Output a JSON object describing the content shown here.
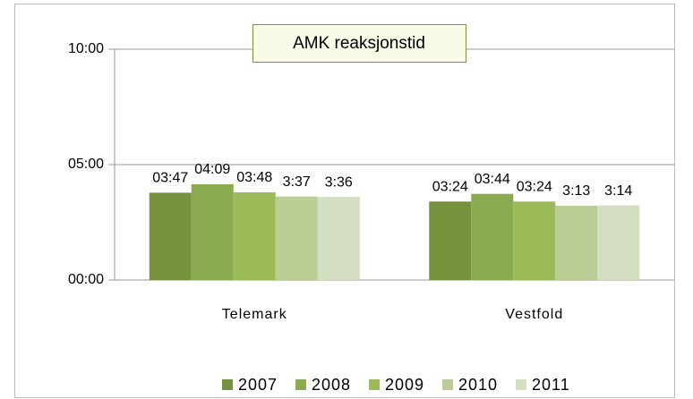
{
  "chart_data": {
    "type": "bar",
    "title": "AMK reaksjonstid",
    "categories": [
      "Telemark",
      "Vestfold"
    ],
    "series": [
      {
        "name": "2007",
        "color": "#76923c",
        "values": [
          227,
          204
        ],
        "value_labels": [
          "03:47",
          "03:24"
        ]
      },
      {
        "name": "2008",
        "color": "#8aab4f",
        "values": [
          249,
          224
        ],
        "value_labels": [
          "04:09",
          "03:44"
        ]
      },
      {
        "name": "2009",
        "color": "#9bbb59",
        "values": [
          228,
          204
        ],
        "value_labels": [
          "03:48",
          "03:24"
        ]
      },
      {
        "name": "2010",
        "color": "#b9cd95",
        "values": [
          217,
          193
        ],
        "value_labels": [
          "3:37",
          "3:13"
        ]
      },
      {
        "name": "2011",
        "color": "#d3dfc0",
        "values": [
          216,
          194
        ],
        "value_labels": [
          "3:36",
          "3:14"
        ]
      }
    ],
    "ylim": [
      0,
      600
    ],
    "yticks": [
      {
        "value": 0,
        "label": "00:00"
      },
      {
        "value": 300,
        "label": "05:00"
      },
      {
        "value": 600,
        "label": "10:00"
      }
    ],
    "grid": true,
    "legend": "bottom"
  }
}
